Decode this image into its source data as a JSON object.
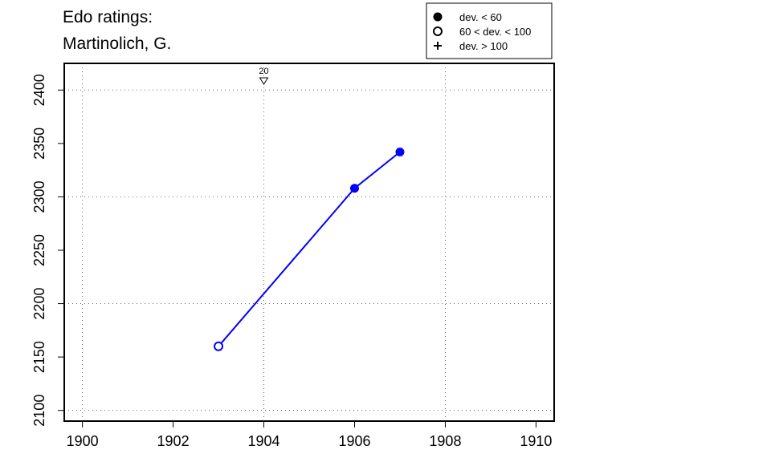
{
  "chart_data": {
    "type": "line",
    "title_lines": [
      "Edo ratings:",
      "Martinolich, G."
    ],
    "xlabel": "",
    "ylabel": "",
    "xlim": [
      1899.6,
      1910.4
    ],
    "ylim": [
      2090,
      2425
    ],
    "x_ticks": [
      1900,
      1902,
      1904,
      1906,
      1908,
      1910
    ],
    "y_ticks": [
      2100,
      2150,
      2200,
      2250,
      2300,
      2350,
      2400
    ],
    "grid": true,
    "series": [
      {
        "color": "#0000ff",
        "points": [
          {
            "x": 1903,
            "y": 2160,
            "marker": "open-circle"
          },
          {
            "x": 1906,
            "y": 2308,
            "marker": "filled-circle"
          },
          {
            "x": 1907,
            "y": 2342,
            "marker": "filled-circle"
          }
        ]
      }
    ],
    "annotations": [
      {
        "x": 1904,
        "label": "20",
        "marker": "down-triangle"
      }
    ],
    "legend": {
      "placement": "top-right",
      "entries": [
        {
          "marker": "filled-circle",
          "label": "dev. < 60"
        },
        {
          "marker": "open-circle",
          "label": "60 < dev. < 100"
        },
        {
          "marker": "plus",
          "label": "dev. > 100"
        }
      ]
    }
  }
}
